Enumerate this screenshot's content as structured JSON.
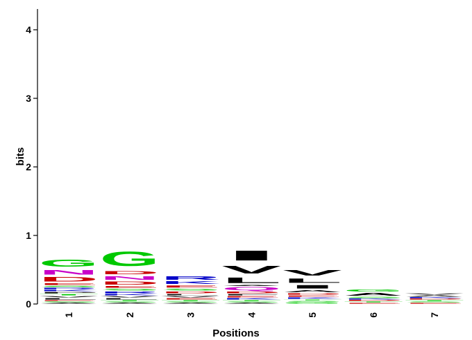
{
  "chart_data": {
    "type": "sequence_logo",
    "xlabel": "Positions",
    "ylabel": "bits",
    "ylim": [
      0,
      4.3
    ],
    "yticks": [
      "0",
      "1",
      "2",
      "3",
      "4"
    ],
    "categories": [
      "1",
      "2",
      "3",
      "4",
      "5",
      "6",
      "7"
    ],
    "colors": {
      "G": "#00c800",
      "A": "#000000",
      "C": "#000000",
      "D": "#c80000",
      "E": "#c80000",
      "N": "#c800c8",
      "Q": "#c800c8",
      "S": "#00c800",
      "T": "#00c800",
      "R": "#0000c8",
      "K": "#0000c8",
      "H": "#0000c8",
      "V": "#000000",
      "L": "#000000",
      "I": "#000000",
      "F": "#000000",
      "Y": "#000000",
      "P": "#000000",
      "M": "#000000",
      "W": "#000000"
    },
    "columns": [
      {
        "position": "1",
        "stack": [
          {
            "letter": "A",
            "height": 0.02
          },
          {
            "letter": "S",
            "height": 0.02
          },
          {
            "letter": "E",
            "height": 0.02
          },
          {
            "letter": "L",
            "height": 0.03
          },
          {
            "letter": "V",
            "height": 0.03
          },
          {
            "letter": "T",
            "height": 0.03
          },
          {
            "letter": "P",
            "height": 0.03
          },
          {
            "letter": "K",
            "height": 0.03
          },
          {
            "letter": "R",
            "height": 0.03
          },
          {
            "letter": "S",
            "height": 0.03
          },
          {
            "letter": "E",
            "height": 0.04
          },
          {
            "letter": "D",
            "height": 0.1
          },
          {
            "letter": "N",
            "height": 0.1
          },
          {
            "letter": "G",
            "height": 0.17
          }
        ]
      },
      {
        "position": "2",
        "stack": [
          {
            "letter": "A",
            "height": 0.02
          },
          {
            "letter": "S",
            "height": 0.02
          },
          {
            "letter": "T",
            "height": 0.02
          },
          {
            "letter": "L",
            "height": 0.03
          },
          {
            "letter": "V",
            "height": 0.03
          },
          {
            "letter": "K",
            "height": 0.03
          },
          {
            "letter": "R",
            "height": 0.04
          },
          {
            "letter": "S",
            "height": 0.04
          },
          {
            "letter": "E",
            "height": 0.04
          },
          {
            "letter": "D",
            "height": 0.07
          },
          {
            "letter": "N",
            "height": 0.08
          },
          {
            "letter": "D",
            "height": 0.07
          },
          {
            "letter": "G",
            "height": 0.33
          }
        ]
      },
      {
        "position": "3",
        "stack": [
          {
            "letter": "A",
            "height": 0.02
          },
          {
            "letter": "S",
            "height": 0.02
          },
          {
            "letter": "T",
            "height": 0.02
          },
          {
            "letter": "E",
            "height": 0.03
          },
          {
            "letter": "V",
            "height": 0.03
          },
          {
            "letter": "L",
            "height": 0.03
          },
          {
            "letter": "D",
            "height": 0.04
          },
          {
            "letter": "S",
            "height": 0.04
          },
          {
            "letter": "E",
            "height": 0.05
          },
          {
            "letter": "K",
            "height": 0.06
          },
          {
            "letter": "R",
            "height": 0.08
          }
        ]
      },
      {
        "position": "4",
        "stack": [
          {
            "letter": "A",
            "height": 0.02
          },
          {
            "letter": "S",
            "height": 0.02
          },
          {
            "letter": "T",
            "height": 0.02
          },
          {
            "letter": "K",
            "height": 0.03
          },
          {
            "letter": "E",
            "height": 0.03
          },
          {
            "letter": "F",
            "height": 0.03
          },
          {
            "letter": "D",
            "height": 0.04
          },
          {
            "letter": "Q",
            "height": 0.07
          },
          {
            "letter": "A",
            "height": 0.02
          },
          {
            "letter": "L",
            "height": 0.13
          },
          {
            "letter": "V",
            "height": 0.18
          },
          {
            "letter": "I",
            "height": 0.23
          }
        ]
      },
      {
        "position": "5",
        "stack": [
          {
            "letter": "G",
            "height": 0.02
          },
          {
            "letter": "S",
            "height": 0.03
          },
          {
            "letter": "T",
            "height": 0.02
          },
          {
            "letter": "K",
            "height": 0.03
          },
          {
            "letter": "E",
            "height": 0.03
          },
          {
            "letter": "D",
            "height": 0.03
          },
          {
            "letter": "A",
            "height": 0.05
          },
          {
            "letter": "I",
            "height": 0.08
          },
          {
            "letter": "L",
            "height": 0.1
          },
          {
            "letter": "V",
            "height": 0.13
          }
        ]
      },
      {
        "position": "6",
        "stack": [
          {
            "letter": "E",
            "height": 0.02
          },
          {
            "letter": "T",
            "height": 0.02
          },
          {
            "letter": "D",
            "height": 0.02
          },
          {
            "letter": "K",
            "height": 0.02
          },
          {
            "letter": "S",
            "height": 0.03
          },
          {
            "letter": "A",
            "height": 0.06
          },
          {
            "letter": "G",
            "height": 0.05
          }
        ]
      },
      {
        "position": "7",
        "stack": [
          {
            "letter": "E",
            "height": 0.02
          },
          {
            "letter": "S",
            "height": 0.02
          },
          {
            "letter": "T",
            "height": 0.02
          },
          {
            "letter": "D",
            "height": 0.02
          },
          {
            "letter": "K",
            "height": 0.02
          },
          {
            "letter": "A",
            "height": 0.03
          },
          {
            "letter": "V",
            "height": 0.03
          }
        ]
      }
    ]
  }
}
